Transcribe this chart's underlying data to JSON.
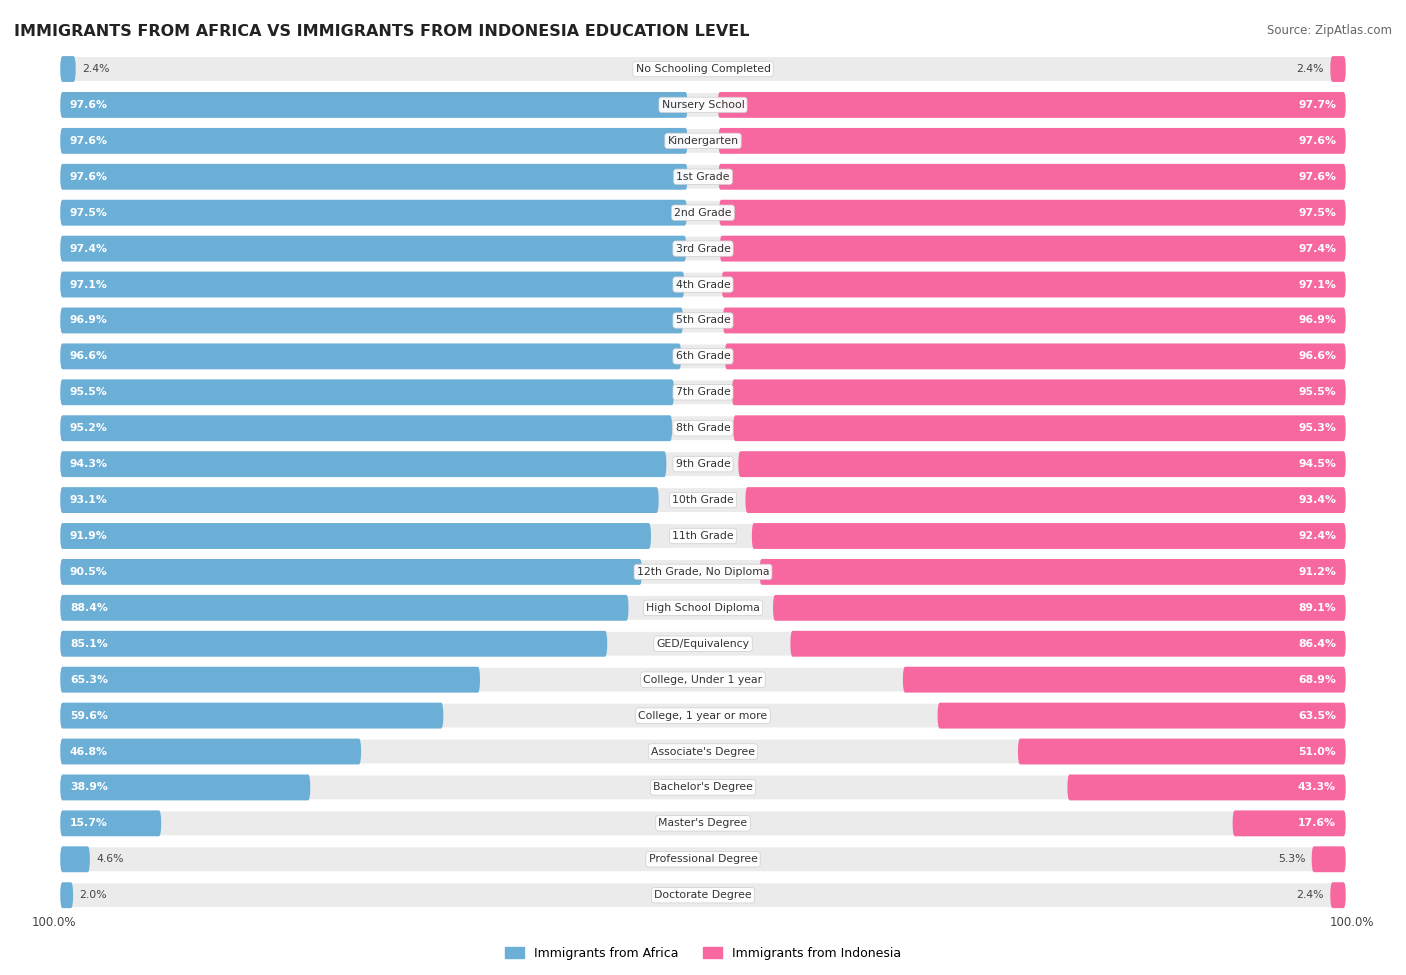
{
  "title": "IMMIGRANTS FROM AFRICA VS IMMIGRANTS FROM INDONESIA EDUCATION LEVEL",
  "source": "Source: ZipAtlas.com",
  "categories": [
    "No Schooling Completed",
    "Nursery School",
    "Kindergarten",
    "1st Grade",
    "2nd Grade",
    "3rd Grade",
    "4th Grade",
    "5th Grade",
    "6th Grade",
    "7th Grade",
    "8th Grade",
    "9th Grade",
    "10th Grade",
    "11th Grade",
    "12th Grade, No Diploma",
    "High School Diploma",
    "GED/Equivalency",
    "College, Under 1 year",
    "College, 1 year or more",
    "Associate's Degree",
    "Bachelor's Degree",
    "Master's Degree",
    "Professional Degree",
    "Doctorate Degree"
  ],
  "africa_values": [
    2.4,
    97.6,
    97.6,
    97.6,
    97.5,
    97.4,
    97.1,
    96.9,
    96.6,
    95.5,
    95.2,
    94.3,
    93.1,
    91.9,
    90.5,
    88.4,
    85.1,
    65.3,
    59.6,
    46.8,
    38.9,
    15.7,
    4.6,
    2.0
  ],
  "indonesia_values": [
    2.4,
    97.7,
    97.6,
    97.6,
    97.5,
    97.4,
    97.1,
    96.9,
    96.6,
    95.5,
    95.3,
    94.5,
    93.4,
    92.4,
    91.2,
    89.1,
    86.4,
    68.9,
    63.5,
    51.0,
    43.3,
    17.6,
    5.3,
    2.4
  ],
  "africa_color": "#6baed6",
  "indonesia_color": "#f768a1",
  "bar_height": 0.72,
  "row_bg_color": "#ebebeb",
  "label_bg_color": "#ffffff",
  "africa_label_color": "#ffffff",
  "indonesia_label_color": "#ffffff",
  "outside_label_color": "#444444",
  "legend_africa": "Immigrants from Africa",
  "legend_indonesia": "Immigrants from Indonesia"
}
